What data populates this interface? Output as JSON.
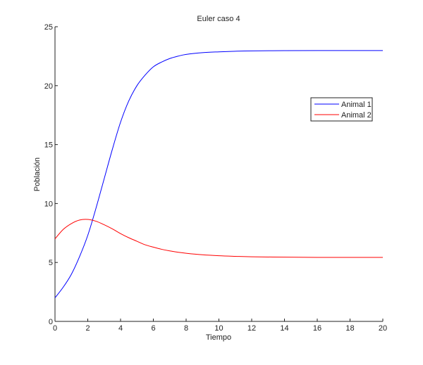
{
  "chart_data": {
    "type": "line",
    "title": "Euler caso 4",
    "xlabel": "Tiempo",
    "ylabel": "Población",
    "xlim": [
      0,
      20
    ],
    "ylim": [
      0,
      25
    ],
    "xticks": [
      0,
      2,
      4,
      6,
      8,
      10,
      12,
      14,
      16,
      18,
      20
    ],
    "yticks": [
      0,
      5,
      10,
      15,
      20,
      25
    ],
    "grid": false,
    "legend_position": "upper right (inside)",
    "series": [
      {
        "name": "Animal 1",
        "color": "#0000ff",
        "x": [
          0,
          0.5,
          1,
          1.5,
          2,
          2.5,
          3,
          3.5,
          4,
          4.5,
          5,
          5.5,
          6,
          6.5,
          7,
          7.5,
          8,
          9,
          10,
          11,
          12,
          14,
          16,
          18,
          20
        ],
        "y": [
          2.0,
          2.9,
          4.0,
          5.5,
          7.3,
          9.6,
          12.1,
          14.6,
          16.9,
          18.7,
          20.0,
          20.9,
          21.6,
          22.0,
          22.3,
          22.5,
          22.65,
          22.8,
          22.87,
          22.92,
          22.95,
          22.97,
          22.98,
          22.98,
          22.98
        ]
      },
      {
        "name": "Animal 2",
        "color": "#ff0000",
        "x": [
          0,
          0.5,
          1,
          1.5,
          2,
          2.5,
          3,
          3.5,
          4,
          4.5,
          5,
          5.5,
          6,
          6.5,
          7,
          7.5,
          8,
          9,
          10,
          11,
          12,
          14,
          16,
          18,
          20
        ],
        "y": [
          7.0,
          7.8,
          8.3,
          8.6,
          8.65,
          8.5,
          8.2,
          7.85,
          7.45,
          7.1,
          6.8,
          6.5,
          6.3,
          6.12,
          5.98,
          5.87,
          5.78,
          5.65,
          5.57,
          5.52,
          5.48,
          5.45,
          5.43,
          5.43,
          5.43
        ]
      }
    ]
  }
}
